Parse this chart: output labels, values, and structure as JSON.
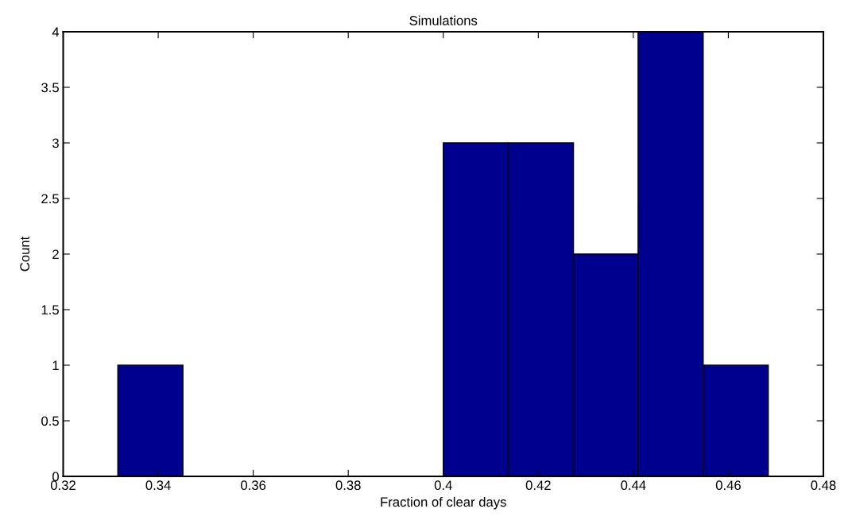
{
  "chart_data": {
    "type": "histogram",
    "title": "Simulations",
    "xlabel": "Fraction of clear days",
    "ylabel": "Count",
    "bins": [
      0.3315,
      0.3452,
      0.3589,
      0.3726,
      0.3863,
      0.4,
      0.4137,
      0.4274,
      0.441,
      0.4547,
      0.4684
    ],
    "values": [
      1,
      0,
      0,
      0,
      0,
      3,
      3,
      2,
      4,
      1
    ],
    "color": "#00008f",
    "xlim": [
      0.32,
      0.48
    ],
    "xticks": [
      0.32,
      0.34,
      0.36,
      0.38,
      0.4,
      0.42,
      0.44,
      0.46,
      0.48
    ],
    "ylim": [
      0,
      4
    ],
    "yticks": [
      0,
      0.5,
      1,
      1.5,
      2,
      2.5,
      3,
      3.5,
      4
    ],
    "grid": false
  }
}
